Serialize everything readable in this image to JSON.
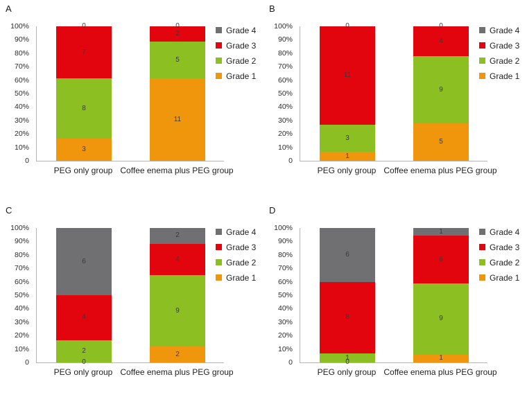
{
  "figure": {
    "background": "#ffffff",
    "axis_color": "#b4b4b4",
    "ytick_labels": [
      "100%",
      "90%",
      "80%",
      "70%",
      "60%",
      "50%",
      "40%",
      "30%",
      "20%",
      "10%",
      "0"
    ],
    "legend_order": [
      "Grade 4",
      "Grade 3",
      "Grade 2",
      "Grade 1"
    ],
    "series_colors": {
      "Grade 1": "#F0960C",
      "Grade 2": "#8CBF21",
      "Grade 3": "#E2050E",
      "Grade 4": "#707072"
    }
  },
  "chart_data": [
    {
      "type": "bar",
      "subtype": "stacked-100-percent",
      "panel_label": "A",
      "categories": [
        "PEG only group",
        "Coffee enema plus PEG group"
      ],
      "series": [
        {
          "name": "Grade 1",
          "color": "#F0960C",
          "values": [
            3,
            11
          ]
        },
        {
          "name": "Grade 2",
          "color": "#8CBF21",
          "values": [
            8,
            5
          ]
        },
        {
          "name": "Grade 3",
          "color": "#E2050E",
          "values": [
            7,
            2
          ]
        },
        {
          "name": "Grade 4",
          "color": "#707072",
          "values": [
            0,
            0
          ]
        }
      ],
      "ylim": [
        0,
        100
      ],
      "grid": false,
      "legend_position": "right",
      "legend": [
        "Grade 4",
        "Grade 3",
        "Grade 2",
        "Grade 1"
      ]
    },
    {
      "type": "bar",
      "subtype": "stacked-100-percent",
      "panel_label": "B",
      "categories": [
        "PEG only group",
        "Coffee enema plus PEG group"
      ],
      "series": [
        {
          "name": "Grade 1",
          "color": "#F0960C",
          "values": [
            1,
            5
          ]
        },
        {
          "name": "Grade 2",
          "color": "#8CBF21",
          "values": [
            3,
            9
          ]
        },
        {
          "name": "Grade 3",
          "color": "#E2050E",
          "values": [
            11,
            4
          ]
        },
        {
          "name": "Grade 4",
          "color": "#707072",
          "values": [
            0,
            0
          ]
        }
      ],
      "ylim": [
        0,
        100
      ],
      "grid": false,
      "legend_position": "right",
      "legend": [
        "Grade 4",
        "Grade 3",
        "Grade 2",
        "Grade 1"
      ]
    },
    {
      "type": "bar",
      "subtype": "stacked-100-percent",
      "panel_label": "C",
      "categories": [
        "PEG only group",
        "Coffee enema plus PEG group"
      ],
      "series": [
        {
          "name": "Grade 1",
          "color": "#F0960C",
          "values": [
            0,
            2
          ]
        },
        {
          "name": "Grade 2",
          "color": "#8CBF21",
          "values": [
            2,
            9
          ]
        },
        {
          "name": "Grade 3",
          "color": "#E2050E",
          "values": [
            4,
            4
          ]
        },
        {
          "name": "Grade 4",
          "color": "#707072",
          "values": [
            6,
            2
          ]
        }
      ],
      "ylim": [
        0,
        100
      ],
      "grid": false,
      "legend_position": "right",
      "legend": [
        "Grade 4",
        "Grade 3",
        "Grade 2",
        "Grade 1"
      ]
    },
    {
      "type": "bar",
      "subtype": "stacked-100-percent",
      "panel_label": "D",
      "categories": [
        "PEG only group",
        "Coffee enema plus PEG group"
      ],
      "series": [
        {
          "name": "Grade 1",
          "color": "#F0960C",
          "values": [
            0,
            1
          ]
        },
        {
          "name": "Grade 2",
          "color": "#8CBF21",
          "values": [
            1,
            9
          ]
        },
        {
          "name": "Grade 3",
          "color": "#E2050E",
          "values": [
            8,
            6
          ]
        },
        {
          "name": "Grade 4",
          "color": "#707072",
          "values": [
            6,
            1
          ]
        }
      ],
      "ylim": [
        0,
        100
      ],
      "grid": false,
      "legend_position": "right",
      "legend": [
        "Grade 4",
        "Grade 3",
        "Grade 2",
        "Grade 1"
      ]
    }
  ]
}
